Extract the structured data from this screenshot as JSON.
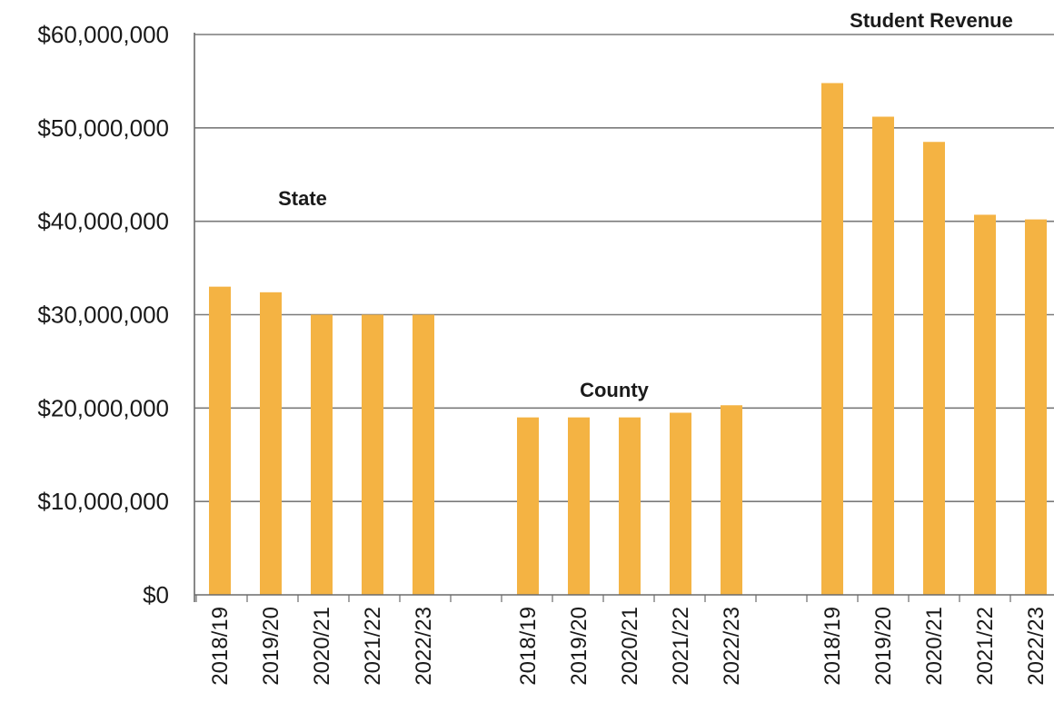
{
  "chart_data": {
    "type": "bar",
    "groups": [
      {
        "name": "State",
        "categories": [
          "2018/19",
          "2019/20",
          "2020/21",
          "2021/22",
          "2022/23"
        ],
        "values": [
          33000000,
          32400000,
          30000000,
          30000000,
          30000000
        ]
      },
      {
        "name": "County",
        "categories": [
          "2018/19",
          "2019/20",
          "2020/21",
          "2021/22",
          "2022/23"
        ],
        "values": [
          19000000,
          19000000,
          19000000,
          19500000,
          20300000
        ]
      },
      {
        "name": "Student Revenue",
        "categories": [
          "2018/19",
          "2019/20",
          "2020/21",
          "2021/22",
          "2022/23"
        ],
        "values": [
          54800000,
          51200000,
          48500000,
          40700000,
          40200000
        ]
      }
    ],
    "y_ticks": [
      "$0",
      "$10,000,000",
      "$20,000,000",
      "$30,000,000",
      "$40,000,000",
      "$50,000,000",
      "$60,000,000"
    ],
    "ylim": [
      0,
      60000000
    ],
    "grid": true,
    "bar_color": "#f4b343",
    "grid_color": "#7a7a7a"
  }
}
